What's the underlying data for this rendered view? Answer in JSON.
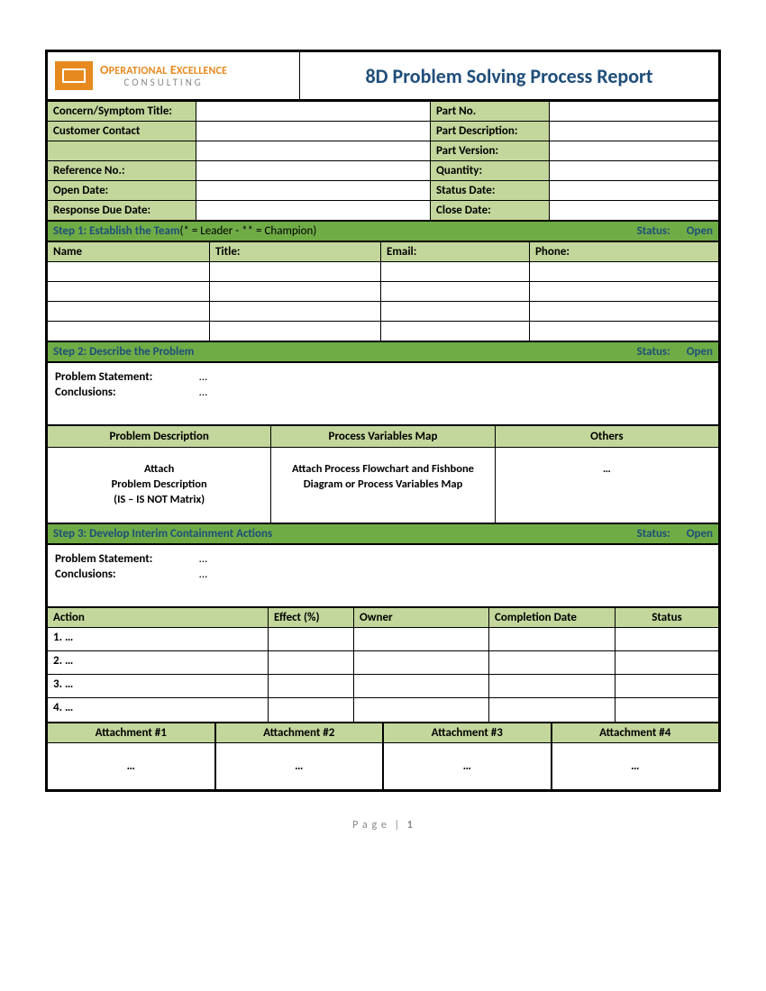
{
  "colors": {
    "header_green": "#c3d69b",
    "step_green": "#6fac46",
    "title_blue": "#1f4e79",
    "logo_orange": "#e68a1f",
    "border": "#000000",
    "page_bg": "#ffffff",
    "footer_gray": "#888888"
  },
  "logo": {
    "line1": "OPERATIONAL EXCELLENCE",
    "line2": "CONSULTING"
  },
  "title": "8D Problem Solving Process Report",
  "meta_left": [
    {
      "label": "Concern/Symptom Title:",
      "value": ""
    },
    {
      "label": "Customer Contact",
      "value": ""
    },
    {
      "label": "Reference No.:",
      "value": ""
    },
    {
      "label": "Open Date:",
      "value": ""
    },
    {
      "label": "Response Due Date:",
      "value": ""
    }
  ],
  "meta_right": [
    {
      "label": "Part No.",
      "value": ""
    },
    {
      "label": "Part Description:",
      "value": ""
    },
    {
      "label": "Part Version:",
      "value": ""
    },
    {
      "label": "Quantity:",
      "value": ""
    },
    {
      "label": "Status Date:",
      "value": ""
    },
    {
      "label": "Close Date:",
      "value": ""
    }
  ],
  "step1": {
    "title": "Step 1: Establish the Team",
    "legend": " (* = Leader - ** = Champion)",
    "status_label": "Status:",
    "status_value": "Open",
    "cols": [
      "Name",
      "Title:",
      "Email:",
      "Phone:"
    ],
    "rows": [
      [
        "",
        "",
        "",
        ""
      ],
      [
        "",
        "",
        "",
        ""
      ],
      [
        "",
        "",
        "",
        ""
      ],
      [
        "",
        "",
        "",
        ""
      ]
    ]
  },
  "step2": {
    "title": "Step 2: Describe the Problem",
    "status_label": "Status:",
    "status_value": "Open",
    "ps_label": "Problem Statement:",
    "ps_value": "…",
    "conc_label": "Conclusions:",
    "conc_value": "…",
    "grid_heads": [
      "Problem Description",
      "Process Variables Map",
      "Others"
    ],
    "grid_cells": [
      "Attach\nProblem Description\n(IS – IS NOT Matrix)",
      "Attach Process Flowchart and Fishbone Diagram or Process Variables Map",
      "…"
    ]
  },
  "step3": {
    "title": "Step 3: Develop Interim Containment Actions",
    "status_label": "Status:",
    "status_value": "Open",
    "ps_label": "Problem Statement:",
    "ps_value": "…",
    "conc_label": "Conclusions:",
    "conc_value": "…",
    "cols": [
      "Action",
      "Effect (%)",
      "Owner",
      "Completion Date",
      "Status"
    ],
    "rows": [
      [
        "1. …",
        "",
        "",
        "",
        ""
      ],
      [
        "2. …",
        "",
        "",
        "",
        ""
      ],
      [
        "3. …",
        "",
        "",
        "",
        ""
      ],
      [
        "4. …",
        "",
        "",
        "",
        ""
      ]
    ],
    "attach_heads": [
      "Attachment #1",
      "Attachment #2",
      "Attachment #3",
      "Attachment #4"
    ],
    "attach_cells": [
      "…",
      "…",
      "…",
      "…"
    ]
  },
  "footer": {
    "page_label": "P a g e",
    "sep": "|",
    "num": "1"
  }
}
